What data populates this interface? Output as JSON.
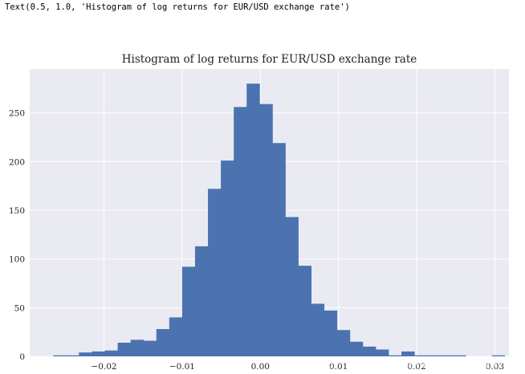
{
  "output_text": "Text(0.5, 1.0, 'Histogram of log returns for EUR/USD exchange rate')",
  "watermark": "https://blog.csdn.net/Linli522362242",
  "chart_data": {
    "type": "bar",
    "title": "Histogram of log returns for EUR/USD exchange rate",
    "xlabel": "",
    "ylabel": "",
    "xlim": [
      -0.0295,
      0.0318
    ],
    "ylim": [
      0,
      295
    ],
    "x_ticks": [
      -0.02,
      -0.01,
      0.0,
      0.01,
      0.02,
      0.03
    ],
    "x_tick_labels": [
      "−0.02",
      "−0.01",
      "0.00",
      "0.01",
      "0.02",
      "0.03"
    ],
    "y_ticks": [
      0,
      50,
      100,
      150,
      200,
      250
    ],
    "y_tick_labels": [
      "0",
      "50",
      "100",
      "150",
      "200",
      "250"
    ],
    "bin_edges": [
      -0.0265,
      -0.02485,
      -0.0232,
      -0.02155,
      -0.0199,
      -0.01825,
      -0.0166,
      -0.01495,
      -0.0133,
      -0.01165,
      -0.01,
      -0.00835,
      -0.0067,
      -0.00505,
      -0.0034,
      -0.00175,
      -0.0001,
      0.00155,
      0.0032,
      0.00485,
      0.0065,
      0.00815,
      0.0098,
      0.01145,
      0.0131,
      0.01475,
      0.0164,
      0.01805,
      0.0197,
      0.02135,
      0.023,
      0.02465,
      0.0263,
      0.02795,
      0.0296,
      0.03125
    ],
    "counts": [
      1,
      1,
      4,
      5,
      6,
      14,
      17,
      16,
      28,
      40,
      92,
      113,
      172,
      201,
      256,
      280,
      259,
      219,
      143,
      93,
      54,
      47,
      27,
      15,
      10,
      7,
      1,
      5,
      1,
      1,
      1,
      1,
      0,
      0,
      1
    ],
    "bar_color": "#4c72b0",
    "background_color": "#eaeaf2",
    "grid": true
  }
}
